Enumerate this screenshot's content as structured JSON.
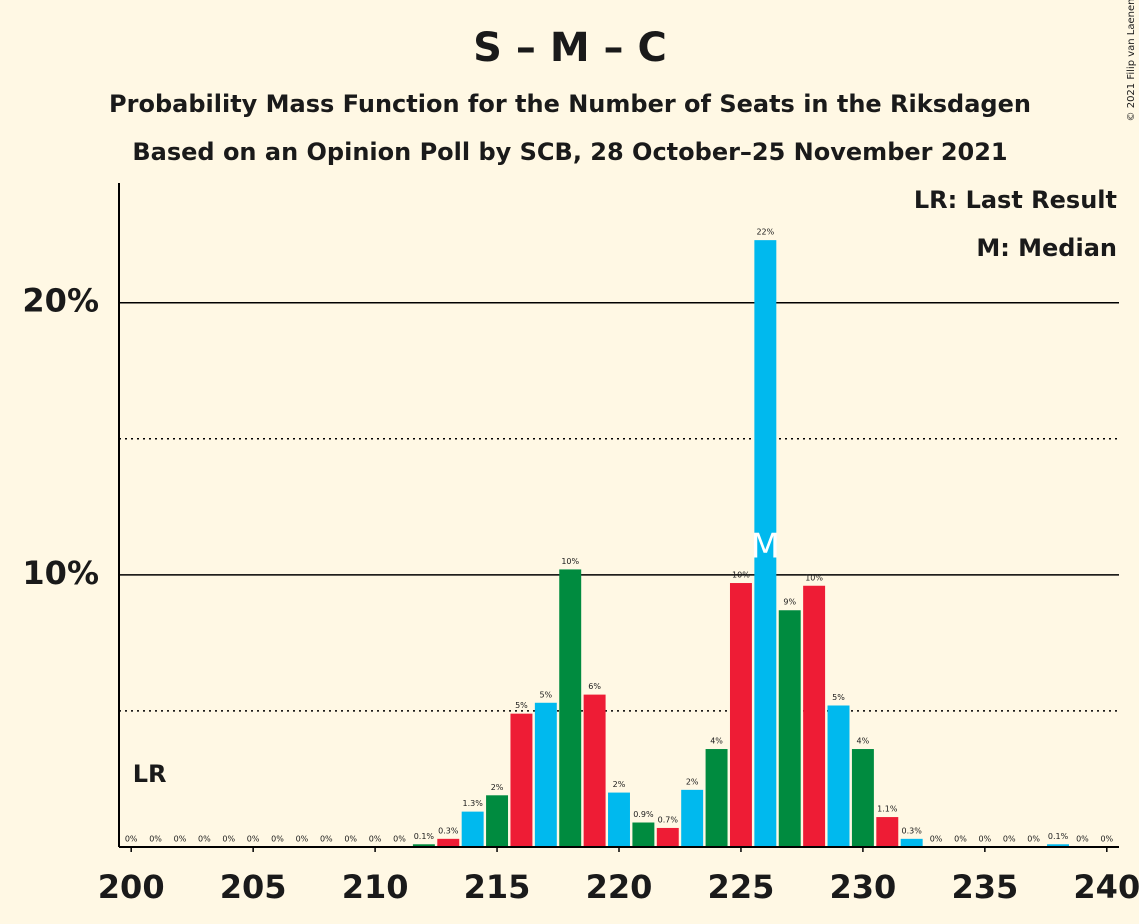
{
  "chart_data": {
    "type": "bar",
    "title": "S – M – C",
    "subtitle": "Probability Mass Function for the Number of Seats in the Riksdagen",
    "subtitle2": "Based on an Opinion Poll by SCB, 28 October–25 November 2021",
    "copyright": "© 2021 Filip van Laenen",
    "x": [
      200,
      201,
      202,
      203,
      204,
      205,
      206,
      207,
      208,
      209,
      210,
      211,
      212,
      213,
      214,
      215,
      216,
      217,
      218,
      219,
      220,
      221,
      222,
      223,
      224,
      225,
      226,
      227,
      228,
      229,
      230,
      231,
      232,
      233,
      234,
      235,
      236,
      237,
      238,
      239,
      240
    ],
    "values": [
      0,
      0,
      0,
      0,
      0,
      0,
      0,
      0,
      0,
      0,
      0,
      0,
      0.1,
      0.3,
      1.3,
      1.9,
      4.9,
      5.3,
      10.2,
      5.6,
      2.0,
      0.9,
      0.7,
      2.1,
      3.6,
      9.7,
      22.3,
      8.7,
      9.6,
      5.2,
      3.6,
      1.1,
      0.3,
      0,
      0,
      0,
      0,
      0,
      0.1,
      0,
      0
    ],
    "value_labels": [
      "0%",
      "0%",
      "0%",
      "0%",
      "0%",
      "0%",
      "0%",
      "0%",
      "0%",
      "0%",
      "0%",
      "0%",
      "0.1%",
      "0.3%",
      "1.3%",
      "2%",
      "5%",
      "5%",
      "10%",
      "6%",
      "2%",
      "0.9%",
      "0.7%",
      "2%",
      "4%",
      "10%",
      "22%",
      "9%",
      "10%",
      "5%",
      "4%",
      "1.1%",
      "0.3%",
      "0%",
      "0%",
      "0%",
      "0%",
      "0%",
      "0.1%",
      "0%",
      "0%"
    ],
    "color_cycle": [
      "#008b3f",
      "#ee1c35",
      "#00b9ee"
    ],
    "xlim": [
      199.5,
      240.5
    ],
    "xticks": [
      200,
      205,
      210,
      215,
      220,
      225,
      230,
      235,
      240
    ],
    "ylim": [
      0,
      24.4
    ],
    "yticks": [
      {
        "value": 10,
        "label": "10%"
      },
      {
        "value": 20,
        "label": "20%"
      }
    ],
    "minor_yticks": [
      5,
      15
    ],
    "last_result": 201,
    "last_result_label": "LR",
    "median": 226,
    "median_label": "M",
    "legend": [
      "LR: Last Result",
      "M: Median"
    ]
  }
}
